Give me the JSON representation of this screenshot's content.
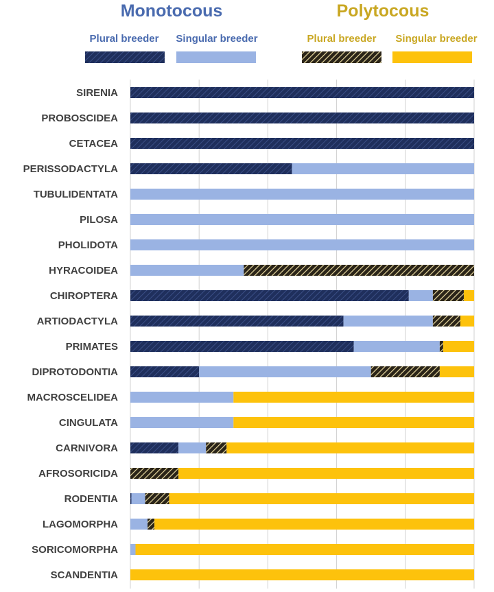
{
  "colors": {
    "monotocous_title": "#4A6BAF",
    "polytocous_title": "#C9A722",
    "mono_plural": "#1F2F5C",
    "mono_singular": "#9AB3E3",
    "poly_plural": "#2A2418",
    "poly_plural_stripe": "#E8D9A0",
    "poly_singular": "#FDC20C",
    "grid": "#D0D0D0"
  },
  "legend": {
    "groups": [
      {
        "title": "Monotocous",
        "items": [
          {
            "label": "Plural breeder",
            "series": "mono_plural"
          },
          {
            "label": "Singular breeder",
            "series": "mono_singular"
          }
        ]
      },
      {
        "title": "Polytocous",
        "items": [
          {
            "label": "Plural breeder",
            "series": "poly_plural"
          },
          {
            "label": "Singular breeder",
            "series": "poly_singular"
          }
        ]
      }
    ]
  },
  "chart_data": {
    "type": "bar",
    "orientation": "horizontal",
    "stacked": "percent",
    "title": "",
    "xlabel": "",
    "ylabel": "",
    "xlim": [
      0,
      1
    ],
    "grid": true,
    "legend_position": "top",
    "categories": [
      "SIRENIA",
      "PROBOSCIDEA",
      "CETACEA",
      "PERISSODACTYLA",
      "TUBULIDENTATA",
      "PILOSA",
      "PHOLIDOTA",
      "HYRACOIDEA",
      "CHIROPTERA",
      "ARTIODACTYLA",
      "PRIMATES",
      "DIPROTODONTIA",
      "MACROSCELIDEA",
      "CINGULATA",
      "CARNIVORA",
      "AFROSORICIDA",
      "RODENTIA",
      "LAGOMORPHA",
      "SORICOMORPHA",
      "SCANDENTIA"
    ],
    "series": [
      {
        "key": "mono_plural",
        "values": [
          1.0,
          1.0,
          1.0,
          0.47,
          0,
          0,
          0,
          0,
          0.81,
          0.62,
          0.65,
          0.2,
          0,
          0,
          0.14,
          0,
          0.003,
          0,
          0,
          0
        ]
      },
      {
        "key": "mono_singular",
        "values": [
          0,
          0,
          0,
          0.53,
          1.0,
          1.0,
          1.0,
          0.33,
          0.07,
          0.26,
          0.25,
          0.5,
          0.3,
          0.3,
          0.08,
          0,
          0.04,
          0.05,
          0.015,
          0
        ]
      },
      {
        "key": "poly_plural",
        "values": [
          0,
          0,
          0,
          0,
          0,
          0,
          0,
          0.67,
          0.09,
          0.08,
          0.01,
          0.2,
          0,
          0,
          0.06,
          0.14,
          0.07,
          0.02,
          0,
          0
        ]
      },
      {
        "key": "poly_singular",
        "values": [
          0,
          0,
          0,
          0,
          0,
          0,
          0,
          0,
          0.03,
          0.04,
          0.09,
          0.1,
          0.7,
          0.7,
          0.72,
          0.86,
          0.887,
          0.93,
          0.985,
          1.0
        ]
      }
    ]
  }
}
